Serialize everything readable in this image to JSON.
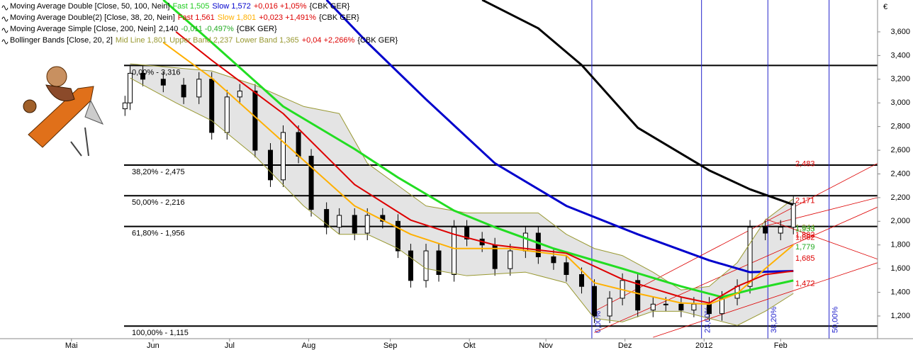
{
  "chart_data": {
    "type": "candlestick",
    "currency": "€",
    "xlim": [
      0,
      344
    ],
    "ylim": [
      1.0085,
      3.869
    ],
    "xticks": [
      {
        "value": 28,
        "label": "Mai"
      },
      {
        "value": 60,
        "label": "Jun"
      },
      {
        "value": 90,
        "label": "Jul"
      },
      {
        "value": 121,
        "label": "Aug"
      },
      {
        "value": 153,
        "label": "Sep"
      },
      {
        "value": 184,
        "label": "Okt"
      },
      {
        "value": 214,
        "label": "Nov"
      },
      {
        "value": 245,
        "label": "Dez"
      },
      {
        "value": 276,
        "label": "2012"
      },
      {
        "value": 306,
        "label": "Feb"
      }
    ],
    "yticks": [
      {
        "value": 1.2,
        "label": "1,200"
      },
      {
        "value": 1.4,
        "label": "1,400"
      },
      {
        "value": 1.6,
        "label": "1,600"
      },
      {
        "value": 1.8,
        "label": "1,800"
      },
      {
        "value": 2.0,
        "label": "2,000"
      },
      {
        "value": 2.2,
        "label": "2,200"
      },
      {
        "value": 2.4,
        "label": "2,400"
      },
      {
        "value": 2.6,
        "label": "2,600"
      },
      {
        "value": 2.8,
        "label": "2,800"
      },
      {
        "value": 3.0,
        "label": "3,000"
      },
      {
        "value": 3.2,
        "label": "3,200"
      },
      {
        "value": 3.4,
        "label": "3,400"
      },
      {
        "value": 3.6,
        "label": "3,600"
      }
    ],
    "legend": [
      [
        {
          "text": "Moving Average Double [Close, 50, 100, Nein]",
          "color": "#000000"
        },
        {
          "text": "Fast 1,505",
          "color": "#22cc22"
        },
        {
          "text": "Slow 1,572",
          "color": "#0000cc"
        },
        {
          "text": "+0,016 +1,05%",
          "color": "#dd0000"
        },
        {
          "text": "{CBK GER}",
          "color": "#000000"
        }
      ],
      [
        {
          "text": "Moving Average Double(2) [Close, 38, 20, Nein]",
          "color": "#000000"
        },
        {
          "text": "Fast 1,561",
          "color": "#dd0000"
        },
        {
          "text": "Slow 1,801",
          "color": "#ffb000"
        },
        {
          "text": "+0,023 +1,491%",
          "color": "#dd0000"
        },
        {
          "text": "{CBK GER}",
          "color": "#000000"
        }
      ],
      [
        {
          "text": "Moving Average Simple [Close, 200, Nein]",
          "color": "#000000"
        },
        {
          "text": "2,140",
          "color": "#000000"
        },
        {
          "text": "-0,011 -0,497%",
          "color": "#22aa22"
        },
        {
          "text": "{CBK GER}",
          "color": "#000000"
        }
      ],
      [
        {
          "text": "Bollinger Bands [Close, 20, 2]",
          "color": "#000000"
        },
        {
          "text": "Mid Line 1,801",
          "color": "#999933"
        },
        {
          "text": "Upper Band 2,237",
          "color": "#999933"
        },
        {
          "text": "Lower Band 1,365",
          "color": "#999933"
        },
        {
          "text": "+0,04 +2,266%",
          "color": "#dd0000"
        },
        {
          "text": "{CBK GER}",
          "color": "#000000"
        }
      ]
    ],
    "candles": {
      "x": [
        49,
        51,
        56,
        64,
        72,
        78,
        83,
        89,
        94,
        100,
        106,
        111,
        117,
        122,
        128,
        133,
        139,
        144,
        150,
        156,
        161,
        167,
        172,
        178,
        183,
        189,
        194,
        200,
        206,
        211,
        217,
        222,
        228,
        233,
        239,
        244,
        250,
        256,
        261,
        267,
        272,
        278,
        283,
        289,
        294,
        300,
        306,
        311
      ],
      "open": [
        2.95,
        3.0,
        3.25,
        3.2,
        3.15,
        3.05,
        3.2,
        2.75,
        3.05,
        3.1,
        2.6,
        2.35,
        2.75,
        2.55,
        2.1,
        1.95,
        2.05,
        1.9,
        2.05,
        2.0,
        1.75,
        1.5,
        1.75,
        1.55,
        1.95,
        1.85,
        1.8,
        1.6,
        1.75,
        1.9,
        1.7,
        1.65,
        1.55,
        1.45,
        1.2,
        1.35,
        1.5,
        1.25,
        1.3,
        1.3,
        1.25,
        1.3,
        1.22,
        1.35,
        1.45,
        1.95,
        1.9,
        1.95
      ],
      "high": [
        3.06,
        3.31,
        3.31,
        3.26,
        3.21,
        3.26,
        3.26,
        3.11,
        3.16,
        3.16,
        2.66,
        2.81,
        2.81,
        2.61,
        2.16,
        2.11,
        2.11,
        2.11,
        2.11,
        2.06,
        1.81,
        1.81,
        1.81,
        2.01,
        2.01,
        1.91,
        1.86,
        1.81,
        1.96,
        1.96,
        1.76,
        1.71,
        1.61,
        1.51,
        1.41,
        1.56,
        1.56,
        1.36,
        1.36,
        1.36,
        1.36,
        1.36,
        1.41,
        1.51,
        2.01,
        2.01,
        2.01,
        2.21
      ],
      "low": [
        2.89,
        2.94,
        3.14,
        3.09,
        2.99,
        2.99,
        2.69,
        2.69,
        2.99,
        2.54,
        2.29,
        2.29,
        2.49,
        2.04,
        1.89,
        1.89,
        1.84,
        1.84,
        1.94,
        1.69,
        1.44,
        1.44,
        1.49,
        1.49,
        1.79,
        1.74,
        1.54,
        1.54,
        1.69,
        1.64,
        1.59,
        1.49,
        1.39,
        1.14,
        1.14,
        1.29,
        1.19,
        1.19,
        1.24,
        1.19,
        1.19,
        1.16,
        1.16,
        1.29,
        1.39,
        1.84,
        1.84,
        1.89
      ],
      "close": [
        3.0,
        3.25,
        3.2,
        3.15,
        3.05,
        3.2,
        2.75,
        3.05,
        3.1,
        2.6,
        2.35,
        2.75,
        2.55,
        2.1,
        1.95,
        2.05,
        1.9,
        2.05,
        2.0,
        1.75,
        1.5,
        1.75,
        1.55,
        1.95,
        1.85,
        1.8,
        1.6,
        1.75,
        1.9,
        1.7,
        1.65,
        1.55,
        1.45,
        1.2,
        1.35,
        1.5,
        1.25,
        1.3,
        1.3,
        1.25,
        1.3,
        1.22,
        1.35,
        1.45,
        1.95,
        1.9,
        1.95,
        2.15
      ]
    },
    "band": {
      "color": "#e4e4e4",
      "edge": "#999933"
    },
    "series": [
      {
        "color": "#999933",
        "width": 1,
        "band": "upper",
        "x": [
          51,
          83,
          100,
          119,
          133,
          144,
          167,
          183,
          211,
          222,
          233,
          244,
          256,
          267,
          278,
          289,
          300,
          311
        ],
        "values": [
          3.33,
          3.27,
          3.15,
          2.97,
          2.91,
          2.49,
          2.13,
          2.07,
          2.07,
          1.89,
          1.77,
          1.71,
          1.57,
          1.42,
          1.45,
          1.65,
          2.01,
          2.19
        ]
      },
      {
        "color": "#999933",
        "width": 1,
        "band": "lower",
        "x": [
          51,
          69,
          83,
          100,
          119,
          133,
          144,
          156,
          167,
          183,
          206,
          222,
          233,
          244,
          256,
          267,
          278,
          289,
          300,
          311
        ],
        "values": [
          3.21,
          3.0,
          2.85,
          2.55,
          2.13,
          1.89,
          1.89,
          1.77,
          1.6,
          1.54,
          1.57,
          1.48,
          1.18,
          1.15,
          1.24,
          1.24,
          1.18,
          1.12,
          1.24,
          1.39
        ]
      },
      {
        "color": "#000000",
        "width": 3,
        "x": [
          189,
          211,
          228,
          250,
          278,
          294,
          311
        ],
        "values": [
          3.87,
          3.63,
          3.32,
          2.79,
          2.43,
          2.27,
          2.14
        ]
      },
      {
        "color": "#0000cc",
        "width": 3,
        "x": [
          128,
          144,
          167,
          194,
          222,
          250,
          278,
          294,
          311
        ],
        "values": [
          3.87,
          3.51,
          3.03,
          2.49,
          2.13,
          1.89,
          1.67,
          1.57,
          1.58
        ]
      },
      {
        "color": "#22dd22",
        "width": 3,
        "x": [
          64,
          83,
          111,
          139,
          156,
          178,
          194,
          217,
          244,
          267,
          283,
          294,
          311
        ],
        "values": [
          3.87,
          3.51,
          2.97,
          2.61,
          2.37,
          2.09,
          1.95,
          1.77,
          1.6,
          1.45,
          1.36,
          1.42,
          1.5
        ]
      },
      {
        "color": "#ffb000",
        "width": 2,
        "x": [
          64,
          83,
          111,
          139,
          161,
          178,
          200,
          222,
          233,
          250,
          267,
          278,
          289,
          300,
          311
        ],
        "values": [
          3.51,
          3.21,
          2.67,
          2.13,
          1.89,
          1.77,
          1.77,
          1.71,
          1.48,
          1.39,
          1.31,
          1.3,
          1.39,
          1.6,
          1.8
        ]
      },
      {
        "color": "#dd0000",
        "width": 2,
        "x": [
          69,
          83,
          111,
          139,
          161,
          178,
          194,
          222,
          244,
          267,
          278,
          289,
          300,
          311
        ],
        "values": [
          3.6,
          3.36,
          2.91,
          2.31,
          2.01,
          1.89,
          1.8,
          1.73,
          1.51,
          1.36,
          1.31,
          1.45,
          1.55,
          1.58
        ]
      }
    ],
    "fib_levels": [
      {
        "value": 3.316,
        "label": "0,00% - 3,316"
      },
      {
        "value": 2.475,
        "label": "38,20% - 2,475"
      },
      {
        "value": 2.216,
        "label": "50,00% - 2,216"
      },
      {
        "value": 1.956,
        "label": "61,80% - 1,956"
      },
      {
        "value": 1.115,
        "label": "100,00% - 1,115"
      }
    ],
    "time_zones": [
      {
        "x": 232,
        "label": "0,00%"
      },
      {
        "x": 275,
        "label": "23,60%"
      },
      {
        "x": 301,
        "label": "38,20%"
      },
      {
        "x": 325,
        "label": "50,00%"
      }
    ],
    "trendlines": {
      "color": "#dd0000",
      "lines": [
        {
          "x": [
            233,
            344
          ],
          "values": [
            1.24,
            2.49
          ]
        },
        {
          "x": [
            233,
            344
          ],
          "values": [
            1.06,
            2.12
          ]
        },
        {
          "x": [
            256,
            344
          ],
          "values": [
            1.02,
            1.65
          ]
        },
        {
          "x": [
            300,
            344
          ],
          "values": [
            1.96,
            2.2
          ]
        },
        {
          "x": [
            300,
            344
          ],
          "values": [
            2.02,
            1.68
          ]
        }
      ]
    },
    "levels_right": [
      {
        "value": 2.483,
        "label": "2,483",
        "color": "#dd0000"
      },
      {
        "value": 2.171,
        "label": "2,171",
        "color": "#dd0000"
      },
      {
        "value": 1.944,
        "label": "1,944",
        "color": "#999933"
      },
      {
        "value": 1.933,
        "label": "1,933",
        "color": "#22aa22"
      },
      {
        "value": 1.882,
        "label": "1,882",
        "color": "#dd0000"
      },
      {
        "value": 1.862,
        "label": "1,862",
        "color": "#dd0000"
      },
      {
        "value": 1.779,
        "label": "1,779",
        "color": "#22aa22"
      },
      {
        "value": 1.685,
        "label": "1,685",
        "color": "#dd0000"
      },
      {
        "value": 1.472,
        "label": "1,472",
        "color": "#dd0000"
      }
    ]
  }
}
